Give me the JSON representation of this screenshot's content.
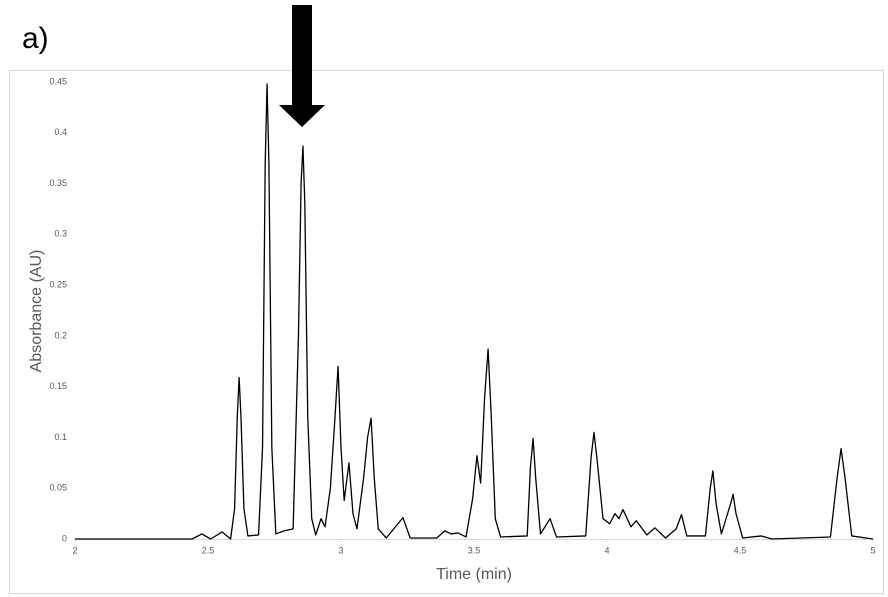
{
  "panel_label": "a)",
  "chart_data": {
    "type": "line",
    "x_label": "Time (min)",
    "y_label": "Absorbance (AU)",
    "xlim": [
      2,
      5
    ],
    "xticks": [
      2,
      2.5,
      3,
      3.5,
      4,
      4.5,
      5
    ],
    "ylim": [
      0,
      0.45
    ],
    "yticks": [
      0,
      0.05,
      0.1,
      0.15,
      0.2,
      0.25,
      0.3,
      0.35,
      0.4,
      0.45
    ],
    "grid": false,
    "series": [
      {
        "color": "#000000",
        "x": [
          2,
          2.44,
          2.477,
          2.51,
          2.553,
          2.585,
          2.6,
          2.61,
          2.617,
          2.624,
          2.635,
          2.65,
          2.69,
          2.705,
          2.715,
          2.722,
          2.729,
          2.74,
          2.755,
          2.786,
          2.82,
          2.84,
          2.85,
          2.857,
          2.864,
          2.875,
          2.89,
          2.905,
          2.925,
          2.94,
          2.96,
          2.975,
          2.989,
          3.0,
          3.012,
          3.03,
          3.045,
          3.06,
          3.085,
          3.1,
          3.113,
          3.125,
          3.14,
          3.17,
          3.233,
          3.26,
          3.36,
          3.39,
          3.415,
          3.44,
          3.47,
          3.495,
          3.511,
          3.525,
          3.54,
          3.553,
          3.565,
          3.58,
          3.6,
          3.7,
          3.712,
          3.722,
          3.732,
          3.75,
          3.786,
          3.81,
          3.92,
          3.94,
          3.951,
          3.962,
          3.985,
          4.01,
          4.03,
          4.045,
          4.06,
          4.09,
          4.11,
          4.15,
          4.18,
          4.22,
          4.26,
          4.28,
          4.3,
          4.37,
          4.388,
          4.398,
          4.41,
          4.43,
          4.465,
          4.474,
          4.485,
          4.51,
          4.58,
          4.62,
          4.84,
          4.865,
          4.88,
          4.895,
          4.92,
          5
        ],
        "values": [
          0,
          0,
          0.005,
          0,
          0.007,
          0,
          0.03,
          0.12,
          0.159,
          0.12,
          0.03,
          0.003,
          0.004,
          0.09,
          0.37,
          0.448,
          0.37,
          0.09,
          0.005,
          0.008,
          0.01,
          0.2,
          0.35,
          0.387,
          0.33,
          0.12,
          0.02,
          0.004,
          0.02,
          0.012,
          0.05,
          0.11,
          0.17,
          0.09,
          0.038,
          0.075,
          0.025,
          0.01,
          0.06,
          0.1,
          0.119,
          0.06,
          0.01,
          0.001,
          0.021,
          0.001,
          0.001,
          0.008,
          0.005,
          0.006,
          0.002,
          0.04,
          0.082,
          0.055,
          0.14,
          0.187,
          0.12,
          0.02,
          0.002,
          0.003,
          0.07,
          0.099,
          0.06,
          0.005,
          0.02,
          0.002,
          0.003,
          0.08,
          0.105,
          0.08,
          0.02,
          0.015,
          0.025,
          0.02,
          0.029,
          0.012,
          0.018,
          0.004,
          0.011,
          0.001,
          0.01,
          0.024,
          0.003,
          0.003,
          0.05,
          0.067,
          0.035,
          0.005,
          0.035,
          0.044,
          0.025,
          0.001,
          0.003,
          0,
          0.002,
          0.06,
          0.089,
          0.06,
          0.003,
          0
        ]
      }
    ]
  }
}
